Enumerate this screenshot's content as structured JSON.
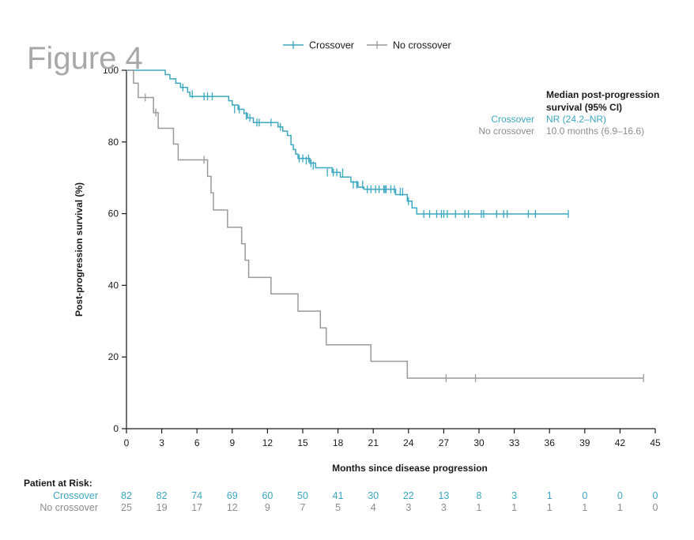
{
  "figure_label": "Figure 4",
  "chart_data": {
    "type": "line",
    "step": true,
    "xlabel": "Months since disease progression",
    "ylabel": "Post-progression survival (%)",
    "xlim": [
      0,
      45
    ],
    "ylim": [
      0,
      100
    ],
    "xticks": [
      0,
      3,
      6,
      9,
      12,
      15,
      18,
      21,
      24,
      27,
      30,
      33,
      36,
      39,
      42,
      45
    ],
    "yticks": [
      0,
      20,
      40,
      60,
      80,
      100
    ],
    "grid": false,
    "legend_position": "top-center",
    "series": [
      {
        "name": "Crossover",
        "color": "#3aa8c1",
        "steps": [
          [
            0,
            100
          ],
          [
            3.3,
            98.8
          ],
          [
            3.7,
            97.6
          ],
          [
            4.2,
            96.4
          ],
          [
            4.6,
            95.2
          ],
          [
            5.2,
            93.9
          ],
          [
            5.4,
            92.7
          ],
          [
            8.7,
            91.5
          ],
          [
            9.0,
            90.3
          ],
          [
            9.5,
            89.1
          ],
          [
            10.0,
            87.9
          ],
          [
            10.3,
            86.7
          ],
          [
            10.8,
            85.4
          ],
          [
            12.9,
            84.2
          ],
          [
            13.3,
            83.0
          ],
          [
            13.7,
            81.8
          ],
          [
            14.0,
            79.2
          ],
          [
            14.2,
            77.9
          ],
          [
            14.4,
            76.6
          ],
          [
            14.6,
            75.4
          ],
          [
            15.6,
            74.1
          ],
          [
            16.1,
            72.8
          ],
          [
            17.5,
            71.5
          ],
          [
            18.2,
            70.2
          ],
          [
            19.1,
            68.8
          ],
          [
            19.7,
            67.4
          ],
          [
            20.2,
            66.8
          ],
          [
            22.9,
            65.3
          ],
          [
            23.9,
            63.5
          ],
          [
            24.3,
            61.6
          ],
          [
            24.7,
            59.9
          ]
        ],
        "end_x": 37.6,
        "censored": [
          [
            4.8,
            95.2
          ],
          [
            5.6,
            93.3
          ],
          [
            6.6,
            92.7
          ],
          [
            6.9,
            92.7
          ],
          [
            7.3,
            92.7
          ],
          [
            9.2,
            89.1
          ],
          [
            9.6,
            89.1
          ],
          [
            10.2,
            87.3
          ],
          [
            10.5,
            86.7
          ],
          [
            11.1,
            85.4
          ],
          [
            11.3,
            85.4
          ],
          [
            12.3,
            85.4
          ],
          [
            13.1,
            84.2
          ],
          [
            14.7,
            75.4
          ],
          [
            15.0,
            75.4
          ],
          [
            15.3,
            74.8
          ],
          [
            15.5,
            75.4
          ],
          [
            15.7,
            74.1
          ],
          [
            15.9,
            73.4
          ],
          [
            17.1,
            71.5
          ],
          [
            17.6,
            71.5
          ],
          [
            17.9,
            71.5
          ],
          [
            18.4,
            71.5
          ],
          [
            19.3,
            68.1
          ],
          [
            19.6,
            68.1
          ],
          [
            20.1,
            68.1
          ],
          [
            20.5,
            66.8
          ],
          [
            20.8,
            66.8
          ],
          [
            21.2,
            66.8
          ],
          [
            21.5,
            66.8
          ],
          [
            21.9,
            66.8
          ],
          [
            22.0,
            66.8
          ],
          [
            22.1,
            66.8
          ],
          [
            22.5,
            66.8
          ],
          [
            22.8,
            66.8
          ],
          [
            23.3,
            66.1
          ],
          [
            23.5,
            66.1
          ],
          [
            24.0,
            63.5
          ],
          [
            25.3,
            59.9
          ],
          [
            25.8,
            59.9
          ],
          [
            26.4,
            59.9
          ],
          [
            26.8,
            59.9
          ],
          [
            27.0,
            59.9
          ],
          [
            27.3,
            59.9
          ],
          [
            28.0,
            59.9
          ],
          [
            28.8,
            59.9
          ],
          [
            29.1,
            59.9
          ],
          [
            30.2,
            59.9
          ],
          [
            30.4,
            59.9
          ],
          [
            31.5,
            59.9
          ],
          [
            32.1,
            59.9
          ],
          [
            32.4,
            59.9
          ],
          [
            34.2,
            59.9
          ],
          [
            34.8,
            59.9
          ],
          [
            37.6,
            59.9
          ]
        ]
      },
      {
        "name": "No crossover",
        "color": "#9a9a9a",
        "steps": [
          [
            0,
            100
          ],
          [
            0.6,
            96.4
          ],
          [
            1.0,
            92.4
          ],
          [
            2.3,
            88.2
          ],
          [
            2.7,
            83.8
          ],
          [
            4.0,
            79.4
          ],
          [
            4.4,
            75.0
          ],
          [
            6.9,
            70.4
          ],
          [
            7.2,
            65.8
          ],
          [
            7.4,
            61.0
          ],
          [
            8.6,
            56.2
          ],
          [
            9.8,
            51.6
          ],
          [
            10.1,
            47.0
          ],
          [
            10.4,
            42.2
          ],
          [
            12.3,
            37.6
          ],
          [
            14.6,
            32.8
          ],
          [
            16.5,
            28.1
          ],
          [
            17.0,
            23.4
          ],
          [
            20.8,
            18.8
          ],
          [
            23.9,
            14.1
          ]
        ],
        "end_x": 44.0,
        "censored": [
          [
            1.6,
            92.4
          ],
          [
            2.5,
            88.2
          ],
          [
            6.6,
            75.0
          ],
          [
            27.2,
            14.1
          ],
          [
            29.7,
            14.1
          ],
          [
            44.0,
            14.1
          ]
        ]
      }
    ]
  },
  "legend": [
    {
      "label": "Crossover",
      "color": "#3aa8c1"
    },
    {
      "label": "No crossover",
      "color": "#9a9a9a"
    }
  ],
  "median": {
    "heading_line1": "Median post-progression",
    "heading_line2": "survival (95% CI)",
    "rows": [
      {
        "group": "Crossover",
        "value": "NR (24.2–NR)",
        "color": "#3aa8c1"
      },
      {
        "group": "No crossover",
        "value": "10.0 months (6.9–16.6)",
        "color": "#8c8c8c"
      }
    ]
  },
  "risk_table": {
    "title": "Patient at Risk:",
    "rows": [
      {
        "label": "Crossover",
        "color": "#3aa8c1",
        "values": [
          82,
          82,
          74,
          69,
          60,
          50,
          41,
          30,
          22,
          13,
          8,
          3,
          1,
          0,
          0,
          0
        ]
      },
      {
        "label": "No crossover",
        "color": "#8c8c8c",
        "values": [
          25,
          19,
          17,
          12,
          9,
          7,
          5,
          4,
          3,
          3,
          1,
          1,
          1,
          1,
          1,
          0
        ]
      }
    ]
  }
}
